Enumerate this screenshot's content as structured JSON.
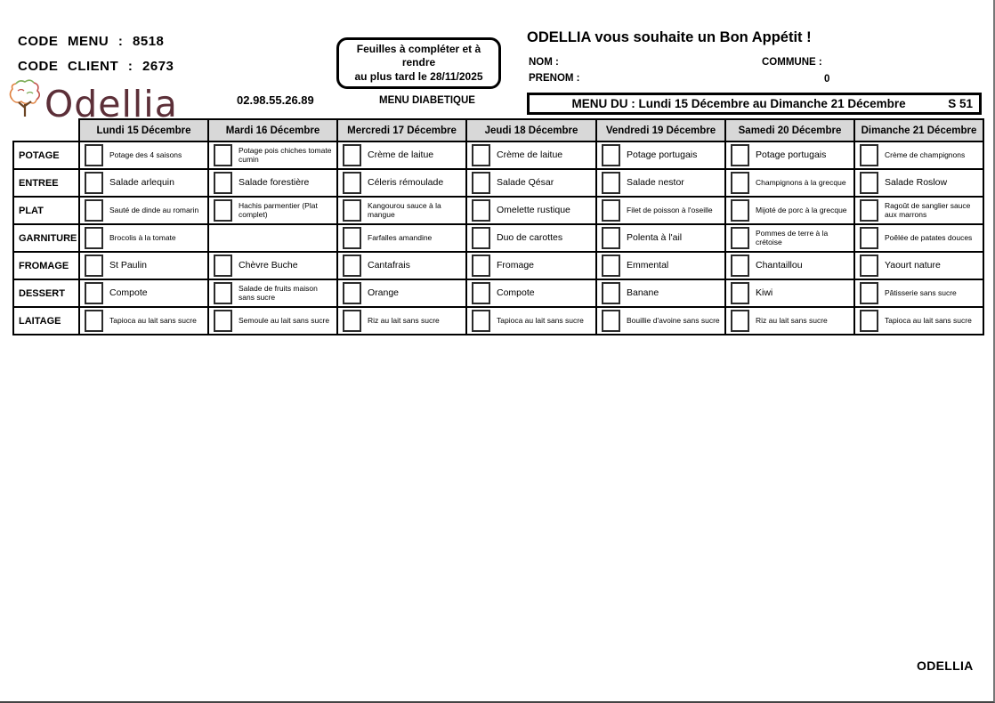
{
  "header": {
    "code_menu_label": "CODE MENU :",
    "code_menu_value": "8518",
    "code_client_label": "CODE CLIENT :",
    "code_client_value": "2673",
    "phone": "02.98.55.26.89",
    "menu_type": "MENU DIABETIQUE",
    "notice_line1": "Feuilles à compléter et à rendre",
    "notice_line2": "au plus tard le 28/11/2025",
    "greeting": "ODELLIA vous souhaite un Bon Appétit !",
    "nom_label": "NOM :",
    "prenom_label": "PRENOM :",
    "commune_label": "COMMUNE :",
    "commune_value": "0",
    "banner_title": "MENU DU : Lundi 15 Décembre au Dimanche 21 Décembre",
    "banner_week": "S 51"
  },
  "logo": {
    "text": "Odellia",
    "color": "#5c2f38"
  },
  "colors": {
    "header_bg": "#d8d8d8",
    "border": "#000000",
    "logo": "#5c2f38"
  },
  "menu_table": {
    "days": [
      "Lundi 15 Décembre",
      "Mardi 16 Décembre",
      "Mercredi 17 Décembre",
      "Jeudi 18 Décembre",
      "Vendredi 19 Décembre",
      "Samedi 20 Décembre",
      "Dimanche 21 Décembre"
    ],
    "rows": [
      {
        "label": "POTAGE",
        "items": [
          "Potage des 4 saisons",
          "Potage pois chiches tomate cumin",
          "Crème de laitue",
          "Crème de laitue",
          "Potage portugais",
          "Potage portugais",
          "Crème de champignons"
        ]
      },
      {
        "label": "ENTREE",
        "items": [
          "Salade arlequin",
          "Salade forestière",
          "Céleris rémoulade",
          "Salade Qésar",
          "Salade nestor",
          "Champignons à la grecque",
          "Salade Roslow"
        ]
      },
      {
        "label": "PLAT",
        "items": [
          "Sauté de dinde au romarin",
          "Hachis parmentier (Plat complet)",
          "Kangourou sauce à la mangue",
          "Omelette rustique",
          "Filet de poisson à l'oseille",
          "Mijoté de porc à la grecque",
          "Ragoût de sanglier sauce aux marrons"
        ]
      },
      {
        "label": "GARNITURE",
        "items": [
          "Brocolis à la tomate",
          null,
          "Farfalles amandine",
          "Duo de carottes",
          "Polenta à l'ail",
          "Pommes de terre à la crétoise",
          "Poêlée de patates douces"
        ]
      },
      {
        "label": "FROMAGE",
        "items": [
          "St Paulin",
          "Chèvre Buche",
          "Cantafrais",
          "Fromage",
          "Emmental",
          "Chantaillou",
          "Yaourt nature"
        ]
      },
      {
        "label": "DESSERT",
        "items": [
          "Compote",
          "Salade de fruits maison sans sucre",
          "Orange",
          "Compote",
          "Banane",
          "Kiwi",
          "Pâtisserie sans sucre"
        ]
      },
      {
        "label": "LAITAGE",
        "items": [
          "Tapioca au lait sans sucre",
          "Semoule au lait sans sucre",
          "Riz au lait sans sucre",
          "Tapioca au lait sans sucre",
          "Bouillie d'avoine sans sucre",
          "Riz au lait sans sucre",
          "Tapioca au lait sans sucre"
        ]
      }
    ]
  },
  "footer": {
    "brand": "ODELLIA"
  }
}
